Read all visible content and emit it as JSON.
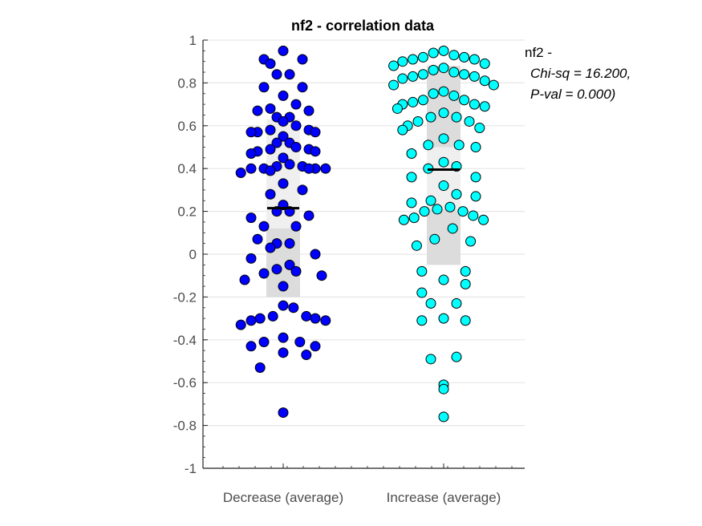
{
  "chart_data": {
    "type": "scatter",
    "subtype": "beeswarm",
    "title": "nf2 - correlation data",
    "categories": [
      "Decrease (average)",
      "Increase (average)"
    ],
    "ylim": [
      -1,
      1
    ],
    "yticks": [
      1,
      0.8,
      0.6,
      0.4,
      0.2,
      0,
      -0.2,
      -0.4,
      -0.6,
      -0.8,
      -1
    ],
    "ytick_labels": [
      "1",
      "0.8",
      "0.6",
      "0.4",
      "0.2",
      "0",
      "-0.2",
      "-0.4",
      "-0.6",
      "-0.8",
      "-1"
    ],
    "grid": "horizontal",
    "annotation": {
      "lines": [
        "nf2 -",
        "Chi-sq = 16.200,",
        "P-val = 0.000)"
      ],
      "placement": "top-right"
    },
    "series": [
      {
        "category": "Decrease (average)",
        "marker_color": "#0000ff",
        "mean": 0.215,
        "band_inner": [
          0.12,
          0.63
        ],
        "band_outer": [
          -0.2,
          0.63
        ],
        "points": [
          {
            "o": 0,
            "y": 0.95
          },
          {
            "o": -1.5,
            "y": 0.91
          },
          {
            "o": 1.5,
            "y": 0.91
          },
          {
            "o": -1,
            "y": 0.89
          },
          {
            "o": 0.5,
            "y": 0.84
          },
          {
            "o": -0.5,
            "y": 0.84
          },
          {
            "o": -1.5,
            "y": 0.78
          },
          {
            "o": 1.5,
            "y": 0.78
          },
          {
            "o": 0,
            "y": 0.74
          },
          {
            "o": -1,
            "y": 0.68
          },
          {
            "o": 1,
            "y": 0.7
          },
          {
            "o": -2,
            "y": 0.67
          },
          {
            "o": 2,
            "y": 0.67
          },
          {
            "o": -0.5,
            "y": 0.64
          },
          {
            "o": 0.5,
            "y": 0.64
          },
          {
            "o": 0,
            "y": 0.62
          },
          {
            "o": -1,
            "y": 0.58
          },
          {
            "o": 1,
            "y": 0.6
          },
          {
            "o": -2,
            "y": 0.57
          },
          {
            "o": 2,
            "y": 0.58
          },
          {
            "o": -2.5,
            "y": 0.57
          },
          {
            "o": 2.5,
            "y": 0.57
          },
          {
            "o": 0,
            "y": 0.55
          },
          {
            "o": -0.5,
            "y": 0.52
          },
          {
            "o": 0.5,
            "y": 0.52
          },
          {
            "o": -1,
            "y": 0.49
          },
          {
            "o": 1,
            "y": 0.5
          },
          {
            "o": -2,
            "y": 0.48
          },
          {
            "o": 2,
            "y": 0.49
          },
          {
            "o": -2.5,
            "y": 0.47
          },
          {
            "o": 2.5,
            "y": 0.48
          },
          {
            "o": 0,
            "y": 0.45
          },
          {
            "o": -1.5,
            "y": 0.4
          },
          {
            "o": 1.5,
            "y": 0.41
          },
          {
            "o": -0.5,
            "y": 0.41
          },
          {
            "o": 0.5,
            "y": 0.42
          },
          {
            "o": -2.5,
            "y": 0.4
          },
          {
            "o": 2.5,
            "y": 0.4
          },
          {
            "o": -1,
            "y": 0.39
          },
          {
            "o": 3.3,
            "y": 0.4
          },
          {
            "o": -3.3,
            "y": 0.38
          },
          {
            "o": 2,
            "y": 0.4
          },
          {
            "o": 0,
            "y": 0.33
          },
          {
            "o": 1.5,
            "y": 0.3
          },
          {
            "o": -1,
            "y": 0.28
          },
          {
            "o": 0,
            "y": 0.23
          },
          {
            "o": -0.5,
            "y": 0.2
          },
          {
            "o": 0.5,
            "y": 0.2
          },
          {
            "o": 2,
            "y": 0.18
          },
          {
            "o": -2.5,
            "y": 0.17
          },
          {
            "o": 1,
            "y": 0.13
          },
          {
            "o": -1.5,
            "y": 0.13
          },
          {
            "o": -2,
            "y": 0.07
          },
          {
            "o": -0.5,
            "y": 0.05
          },
          {
            "o": 0.5,
            "y": 0.05
          },
          {
            "o": -1,
            "y": 0.03
          },
          {
            "o": 2.5,
            "y": 0.0
          },
          {
            "o": -2.5,
            "y": -0.02
          },
          {
            "o": 0.5,
            "y": -0.05
          },
          {
            "o": -0.5,
            "y": -0.07
          },
          {
            "o": 1,
            "y": -0.08
          },
          {
            "o": -1.5,
            "y": -0.09
          },
          {
            "o": 3,
            "y": -0.1
          },
          {
            "o": -3,
            "y": -0.12
          },
          {
            "o": 0,
            "y": -0.15
          },
          {
            "o": 0,
            "y": -0.24
          },
          {
            "o": 0.8,
            "y": -0.25
          },
          {
            "o": -0.8,
            "y": -0.29
          },
          {
            "o": 1.8,
            "y": -0.29
          },
          {
            "o": -1.8,
            "y": -0.3
          },
          {
            "o": 2.5,
            "y": -0.3
          },
          {
            "o": -2.5,
            "y": -0.31
          },
          {
            "o": 3.3,
            "y": -0.31
          },
          {
            "o": -3.3,
            "y": -0.33
          },
          {
            "o": 0,
            "y": -0.39
          },
          {
            "o": -1.5,
            "y": -0.41
          },
          {
            "o": 1.3,
            "y": -0.41
          },
          {
            "o": 2.5,
            "y": -0.43
          },
          {
            "o": -2.5,
            "y": -0.43
          },
          {
            "o": 0,
            "y": -0.46
          },
          {
            "o": 1.8,
            "y": -0.47
          },
          {
            "o": -1.8,
            "y": -0.53
          },
          {
            "o": 0,
            "y": -0.74
          }
        ]
      },
      {
        "category": "Increase (average)",
        "marker_color": "#00ffff",
        "mean": 0.395,
        "band_inner": [
          0.21,
          0.5
        ],
        "band_outer": [
          -0.05,
          0.88
        ],
        "points": [
          {
            "o": 0,
            "y": 0.95
          },
          {
            "o": -0.8,
            "y": 0.94
          },
          {
            "o": 0.8,
            "y": 0.93
          },
          {
            "o": -1.6,
            "y": 0.92
          },
          {
            "o": 1.6,
            "y": 0.92
          },
          {
            "o": -2.4,
            "y": 0.91
          },
          {
            "o": 2.4,
            "y": 0.91
          },
          {
            "o": -3.2,
            "y": 0.9
          },
          {
            "o": 3.2,
            "y": 0.89
          },
          {
            "o": -3.9,
            "y": 0.88
          },
          {
            "o": 0,
            "y": 0.87
          },
          {
            "o": -0.8,
            "y": 0.86
          },
          {
            "o": 0.8,
            "y": 0.85
          },
          {
            "o": -1.6,
            "y": 0.84
          },
          {
            "o": 1.6,
            "y": 0.84
          },
          {
            "o": -2.4,
            "y": 0.83
          },
          {
            "o": 2.4,
            "y": 0.83
          },
          {
            "o": -3.2,
            "y": 0.82
          },
          {
            "o": 3.2,
            "y": 0.81
          },
          {
            "o": -3.9,
            "y": 0.79
          },
          {
            "o": 3.9,
            "y": 0.79
          },
          {
            "o": 0,
            "y": 0.76
          },
          {
            "o": -0.8,
            "y": 0.75
          },
          {
            "o": 0.8,
            "y": 0.74
          },
          {
            "o": -1.6,
            "y": 0.72
          },
          {
            "o": 1.6,
            "y": 0.72
          },
          {
            "o": -2.4,
            "y": 0.71
          },
          {
            "o": 2.4,
            "y": 0.7
          },
          {
            "o": -3.2,
            "y": 0.7
          },
          {
            "o": 3.2,
            "y": 0.69
          },
          {
            "o": -3.6,
            "y": 0.68
          },
          {
            "o": 0,
            "y": 0.66
          },
          {
            "o": -1,
            "y": 0.64
          },
          {
            "o": 1,
            "y": 0.64
          },
          {
            "o": -2,
            "y": 0.62
          },
          {
            "o": 2,
            "y": 0.62
          },
          {
            "o": -2.8,
            "y": 0.6
          },
          {
            "o": 2.8,
            "y": 0.59
          },
          {
            "o": -3.2,
            "y": 0.58
          },
          {
            "o": 0,
            "y": 0.54
          },
          {
            "o": -1.2,
            "y": 0.51
          },
          {
            "o": 1.2,
            "y": 0.51
          },
          {
            "o": 2.5,
            "y": 0.5
          },
          {
            "o": -2.5,
            "y": 0.47
          },
          {
            "o": 0,
            "y": 0.43
          },
          {
            "o": 1,
            "y": 0.41
          },
          {
            "o": -1.2,
            "y": 0.4
          },
          {
            "o": -2.5,
            "y": 0.36
          },
          {
            "o": 2.5,
            "y": 0.36
          },
          {
            "o": 0,
            "y": 0.32
          },
          {
            "o": 1,
            "y": 0.28
          },
          {
            "o": 2.5,
            "y": 0.27
          },
          {
            "o": -1,
            "y": 0.25
          },
          {
            "o": -2.5,
            "y": 0.24
          },
          {
            "o": 0.5,
            "y": 0.22
          },
          {
            "o": -0.5,
            "y": 0.21
          },
          {
            "o": 1.5,
            "y": 0.2
          },
          {
            "o": -1.5,
            "y": 0.2
          },
          {
            "o": 2.3,
            "y": 0.18
          },
          {
            "o": -2.3,
            "y": 0.17
          },
          {
            "o": 3.1,
            "y": 0.16
          },
          {
            "o": -3.1,
            "y": 0.16
          },
          {
            "o": 0.7,
            "y": 0.12
          },
          {
            "o": -0.7,
            "y": 0.07
          },
          {
            "o": 2.1,
            "y": 0.06
          },
          {
            "o": -2.1,
            "y": 0.04
          },
          {
            "o": -1.7,
            "y": -0.08
          },
          {
            "o": 1.7,
            "y": -0.08
          },
          {
            "o": 0,
            "y": -0.12
          },
          {
            "o": 1.7,
            "y": -0.14
          },
          {
            "o": -1.7,
            "y": -0.18
          },
          {
            "o": -1,
            "y": -0.23
          },
          {
            "o": 1,
            "y": -0.23
          },
          {
            "o": 0,
            "y": -0.3
          },
          {
            "o": 1.7,
            "y": -0.31
          },
          {
            "o": -1.7,
            "y": -0.31
          },
          {
            "o": 1,
            "y": -0.48
          },
          {
            "o": -1,
            "y": -0.49
          },
          {
            "o": 0,
            "y": -0.61
          },
          {
            "o": 0,
            "y": -0.63
          },
          {
            "o": 0,
            "y": -0.76
          }
        ]
      }
    ]
  }
}
